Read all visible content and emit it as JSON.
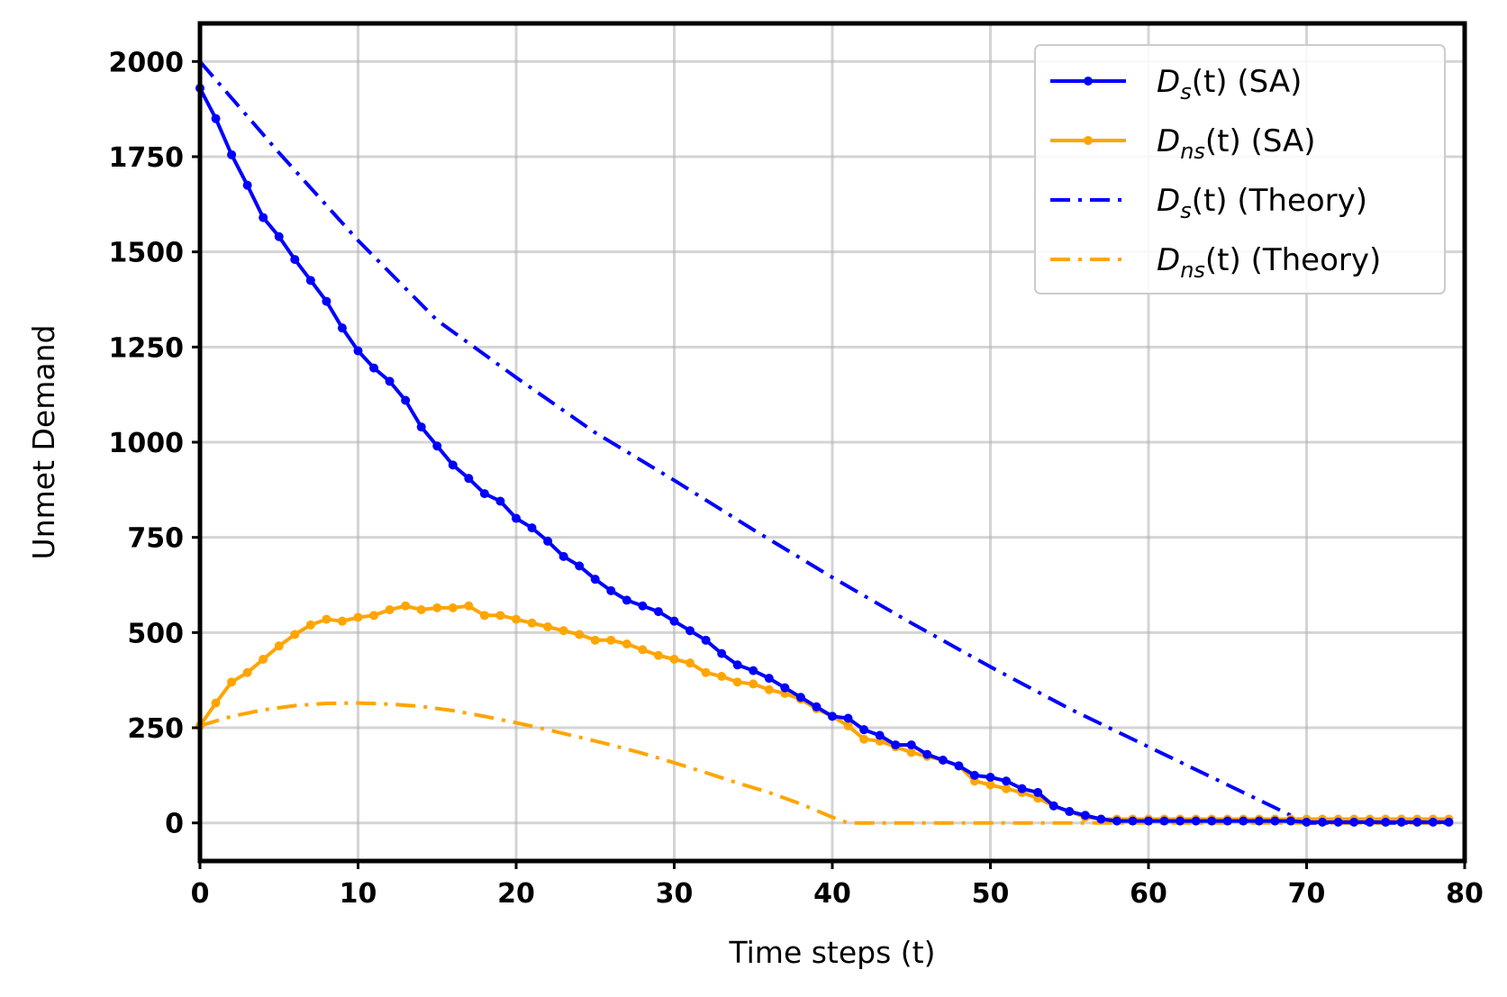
{
  "chart_data": {
    "type": "line",
    "xlabel": "Time steps (t)",
    "ylabel": "Unmet Demand",
    "xlim": [
      0,
      80
    ],
    "ylim": [
      -100,
      2100
    ],
    "xticks": [
      0,
      10,
      20,
      30,
      40,
      50,
      60,
      70,
      80
    ],
    "yticks": [
      0,
      250,
      500,
      750,
      1000,
      1250,
      1500,
      1750,
      2000
    ],
    "grid": true,
    "legend_position": "top-right",
    "colors": {
      "blue": "#0000ff",
      "orange": "#ffa500"
    },
    "series": [
      {
        "name": "D_s(t) (SA)",
        "legend": {
          "var": "D",
          "sub": "s",
          "suffix": "(t) (SA)"
        },
        "style": "solid-marker",
        "color": "#0000ff",
        "x": [
          0,
          1,
          2,
          3,
          4,
          5,
          6,
          7,
          8,
          9,
          10,
          11,
          12,
          13,
          14,
          15,
          16,
          17,
          18,
          19,
          20,
          21,
          22,
          23,
          24,
          25,
          26,
          27,
          28,
          29,
          30,
          31,
          32,
          33,
          34,
          35,
          36,
          37,
          38,
          39,
          40,
          41,
          42,
          43,
          44,
          45,
          46,
          47,
          48,
          49,
          50,
          51,
          52,
          53,
          54,
          55,
          56,
          57,
          58,
          59,
          60,
          61,
          62,
          63,
          64,
          65,
          66,
          67,
          68,
          69,
          70,
          71,
          72,
          73,
          74,
          75,
          76,
          77,
          78,
          79
        ],
        "y": [
          1930,
          1850,
          1755,
          1675,
          1590,
          1540,
          1480,
          1425,
          1370,
          1300,
          1240,
          1195,
          1160,
          1110,
          1040,
          990,
          940,
          905,
          865,
          845,
          800,
          775,
          740,
          700,
          675,
          640,
          610,
          585,
          570,
          555,
          530,
          505,
          480,
          445,
          415,
          400,
          380,
          355,
          330,
          305,
          280,
          275,
          245,
          230,
          205,
          205,
          180,
          165,
          150,
          125,
          120,
          110,
          90,
          80,
          45,
          30,
          20,
          10,
          5,
          5,
          5,
          5,
          5,
          5,
          5,
          5,
          5,
          5,
          5,
          5,
          2,
          2,
          2,
          2,
          2,
          2,
          2,
          2,
          2,
          2
        ]
      },
      {
        "name": "D_ns(t) (SA)",
        "legend": {
          "var": "D",
          "sub": "ns",
          "suffix": "(t) (SA)"
        },
        "style": "solid-marker",
        "color": "#ffa500",
        "x": [
          0,
          1,
          2,
          3,
          4,
          5,
          6,
          7,
          8,
          9,
          10,
          11,
          12,
          13,
          14,
          15,
          16,
          17,
          18,
          19,
          20,
          21,
          22,
          23,
          24,
          25,
          26,
          27,
          28,
          29,
          30,
          31,
          32,
          33,
          34,
          35,
          36,
          37,
          38,
          39,
          40,
          41,
          42,
          43,
          44,
          45,
          46,
          47,
          48,
          49,
          50,
          51,
          52,
          53,
          54,
          55,
          56,
          57,
          58,
          59,
          60,
          61,
          62,
          63,
          64,
          65,
          66,
          67,
          68,
          69,
          70,
          71,
          72,
          73,
          74,
          75,
          76,
          77,
          78,
          79
        ],
        "y": [
          255,
          315,
          370,
          395,
          430,
          465,
          495,
          520,
          535,
          530,
          540,
          545,
          560,
          570,
          560,
          565,
          565,
          570,
          545,
          545,
          535,
          525,
          515,
          505,
          495,
          480,
          480,
          470,
          455,
          440,
          430,
          420,
          395,
          385,
          370,
          365,
          350,
          340,
          325,
          300,
          280,
          255,
          220,
          215,
          200,
          185,
          175,
          165,
          150,
          110,
          100,
          90,
          80,
          65,
          45,
          30,
          15,
          10,
          10,
          10,
          10,
          10,
          10,
          10,
          10,
          10,
          10,
          10,
          10,
          10,
          10,
          10,
          10,
          10,
          10,
          10,
          10,
          10,
          10,
          10
        ]
      },
      {
        "name": "D_s(t) (Theory)",
        "legend": {
          "var": "D",
          "sub": "s",
          "suffix": "(t) (Theory)"
        },
        "style": "dashdot",
        "color": "#0000ff",
        "x": [
          0,
          5,
          10,
          15,
          20,
          25,
          30,
          35,
          40,
          45,
          50,
          55,
          60,
          65,
          70,
          75,
          79
        ],
        "y": [
          2000,
          1760,
          1530,
          1320,
          1170,
          1025,
          900,
          770,
          645,
          525,
          410,
          300,
          200,
          100,
          0,
          0,
          0
        ]
      },
      {
        "name": "D_ns(t) (Theory)",
        "legend": {
          "var": "D",
          "sub": "ns",
          "suffix": "(t) (Theory)"
        },
        "style": "dashdot",
        "color": "#ffa500",
        "x": [
          0,
          2,
          4,
          6,
          8,
          10,
          12,
          14,
          16,
          18,
          20,
          22,
          24,
          26,
          28,
          30,
          32,
          34,
          36,
          38,
          40,
          41,
          45,
          50,
          55,
          60,
          65,
          70,
          75,
          79
        ],
        "y": [
          255,
          280,
          297,
          308,
          314,
          315,
          312,
          306,
          295,
          280,
          263,
          245,
          225,
          205,
          183,
          158,
          132,
          105,
          80,
          50,
          15,
          0,
          0,
          0,
          0,
          0,
          0,
          0,
          0,
          0
        ]
      }
    ]
  }
}
